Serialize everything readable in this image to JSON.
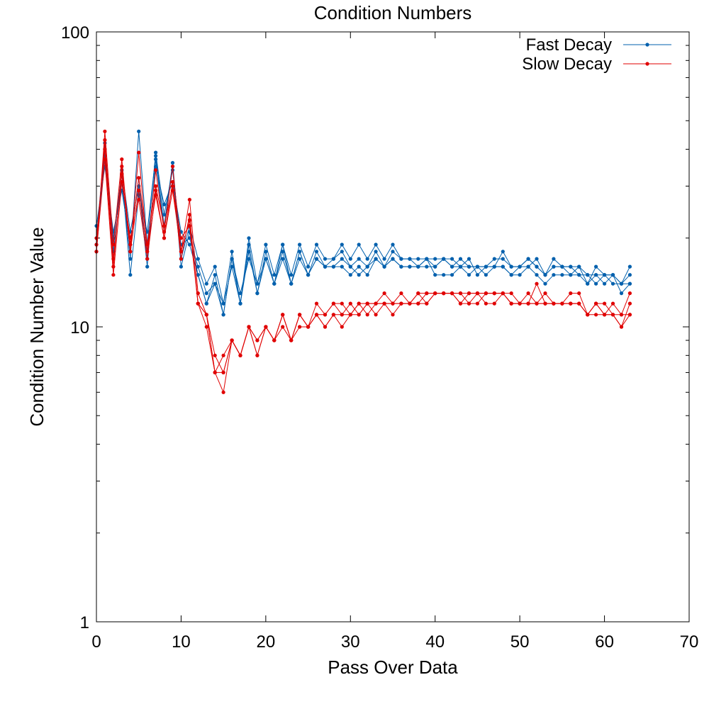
{
  "chart_data": {
    "type": "line",
    "title": "Condition Numbers",
    "xlabel": "Pass Over Data",
    "ylabel": "Condition Number Value",
    "xlim": [
      0,
      70
    ],
    "ylim": [
      1,
      100
    ],
    "yscale": "log",
    "grid": false,
    "legend_position": "top-right",
    "x_ticks": [
      0,
      10,
      20,
      30,
      40,
      50,
      60,
      70
    ],
    "x_tick_labels": [
      "0",
      "10",
      "20",
      "30",
      "40",
      "50",
      "60",
      "70"
    ],
    "y_ticks": [
      1,
      10,
      100
    ],
    "y_tick_labels": [
      "1",
      "10",
      "100"
    ],
    "legend": [
      {
        "label": "Fast Decay",
        "color": "#0060ad"
      },
      {
        "label": "Slow Decay",
        "color": "#e00000"
      }
    ],
    "series": [
      {
        "group": "Fast Decay",
        "color": "#0060ad",
        "x0": 0,
        "values": [
          18,
          38,
          20,
          33,
          15,
          28,
          21,
          38,
          22,
          36,
          17,
          22,
          17,
          14,
          16,
          12,
          18,
          12,
          20,
          14,
          19,
          15,
          19,
          15,
          19,
          16,
          19,
          17,
          17,
          19,
          17,
          19,
          17,
          19,
          17,
          19,
          17,
          17,
          16,
          17,
          15,
          15,
          15,
          16,
          17,
          15,
          16,
          16,
          18,
          16,
          16,
          16,
          17,
          15,
          17,
          16,
          16,
          16,
          14,
          16,
          15,
          15,
          14,
          16
        ]
      },
      {
        "group": "Fast Decay",
        "color": "#0060ad",
        "x0": 0,
        "values": [
          20,
          42,
          18,
          31,
          17,
          46,
          19,
          39,
          24,
          34,
          19,
          20,
          16,
          13,
          14,
          11,
          17,
          12,
          19,
          13,
          18,
          14,
          19,
          14,
          18,
          15,
          18,
          16,
          16,
          17,
          16,
          17,
          16,
          18,
          16,
          18,
          17,
          17,
          17,
          17,
          17,
          17,
          17,
          16,
          16,
          16,
          16,
          17,
          17,
          16,
          16,
          17,
          16,
          15,
          16,
          16,
          16,
          15,
          15,
          15,
          15,
          14,
          14,
          15
        ]
      },
      {
        "group": "Fast Decay",
        "color": "#0060ad",
        "x0": 0,
        "values": [
          22,
          35,
          21,
          29,
          19,
          32,
          17,
          35,
          26,
          31,
          21,
          19,
          15,
          12,
          15,
          11,
          17,
          13,
          17,
          14,
          17,
          14,
          17,
          14,
          17,
          15,
          17,
          16,
          16,
          16,
          15,
          16,
          15,
          17,
          16,
          17,
          16,
          16,
          16,
          17,
          16,
          17,
          16,
          16,
          15,
          16,
          15,
          16,
          16,
          15,
          15,
          16,
          15,
          14,
          15,
          15,
          15,
          15,
          14,
          15,
          14,
          15,
          14,
          14
        ]
      },
      {
        "group": "Fast Decay",
        "color": "#0060ad",
        "x0": 0,
        "values": [
          19,
          40,
          19,
          34,
          21,
          30,
          16,
          37,
          21,
          35,
          16,
          21,
          15,
          12,
          14,
          12,
          16,
          12,
          18,
          13,
          17,
          14,
          18,
          14,
          18,
          15,
          17,
          16,
          17,
          18,
          16,
          15,
          16,
          17,
          16,
          17,
          16,
          16,
          16,
          16,
          16,
          17,
          16,
          17,
          16,
          16,
          16,
          16,
          16,
          15,
          16,
          17,
          16,
          15,
          16,
          16,
          15,
          16,
          15,
          14,
          15,
          15,
          13,
          14
        ]
      },
      {
        "group": "Slow Decay",
        "color": "#e00000",
        "x0": 0,
        "values": [
          18,
          46,
          19,
          37,
          18,
          39,
          18,
          34,
          21,
          35,
          18,
          27,
          13,
          11,
          7,
          8,
          9,
          8,
          10,
          9,
          10,
          9,
          11,
          9,
          11,
          10,
          12,
          11,
          12,
          12,
          11,
          12,
          12,
          12,
          12,
          12,
          13,
          12,
          13,
          12,
          13,
          13,
          13,
          12,
          13,
          13,
          13,
          13,
          13,
          13,
          12,
          12,
          14,
          12,
          12,
          12,
          12,
          12,
          11,
          12,
          11,
          12,
          11,
          13
        ]
      },
      {
        "group": "Slow Decay",
        "color": "#e00000",
        "x0": 0,
        "values": [
          20,
          40,
          16,
          35,
          19,
          32,
          19,
          30,
          22,
          30,
          20,
          22,
          12,
          11,
          7,
          6,
          9,
          8,
          10,
          8,
          10,
          9,
          11,
          9,
          11,
          10,
          11,
          11,
          12,
          11,
          12,
          11,
          12,
          12,
          13,
          12,
          12,
          12,
          13,
          13,
          13,
          13,
          13,
          13,
          13,
          13,
          13,
          13,
          13,
          12,
          12,
          12,
          12,
          12,
          12,
          12,
          12,
          12,
          11,
          12,
          11,
          11,
          10,
          11
        ]
      },
      {
        "group": "Slow Decay",
        "color": "#e00000",
        "x0": 0,
        "values": [
          19,
          43,
          17,
          33,
          18,
          29,
          18,
          28,
          20,
          29,
          18,
          23,
          12,
          10,
          7,
          7,
          9,
          8,
          10,
          9,
          10,
          9,
          11,
          9,
          11,
          10,
          11,
          10,
          11,
          10,
          11,
          12,
          11,
          12,
          12,
          12,
          12,
          12,
          12,
          13,
          13,
          13,
          13,
          13,
          12,
          13,
          12,
          12,
          13,
          12,
          12,
          13,
          12,
          12,
          12,
          12,
          12,
          12,
          11,
          11,
          11,
          11,
          10,
          12
        ]
      },
      {
        "group": "Slow Decay",
        "color": "#e00000",
        "x0": 0,
        "values": [
          18,
          37,
          15,
          31,
          20,
          27,
          17,
          29,
          20,
          31,
          17,
          24,
          12,
          11,
          8,
          7,
          9,
          8,
          10,
          8,
          10,
          9,
          10,
          9,
          10,
          10,
          11,
          10,
          11,
          11,
          11,
          11,
          12,
          11,
          12,
          11,
          12,
          12,
          12,
          12,
          13,
          13,
          13,
          12,
          12,
          12,
          13,
          13,
          13,
          12,
          12,
          12,
          12,
          13,
          12,
          12,
          13,
          13,
          11,
          12,
          12,
          11,
          11,
          11
        ]
      }
    ]
  }
}
